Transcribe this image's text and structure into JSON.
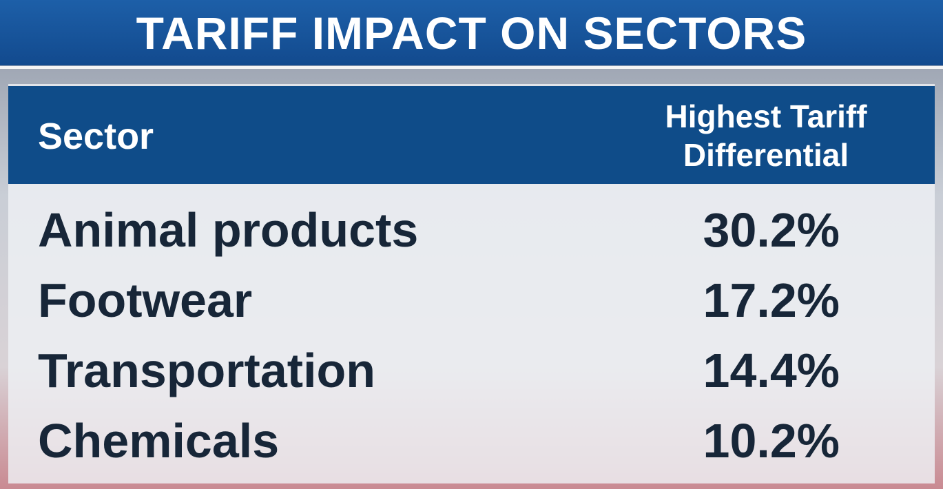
{
  "header": {
    "title": "TARIFF IMPACT ON SECTORS"
  },
  "table": {
    "columns": [
      "Sector",
      "Highest Tariff Differential"
    ],
    "rows": [
      [
        "Animal products",
        "30.2%"
      ],
      [
        "Footwear",
        "17.2%"
      ],
      [
        "Transportation",
        "14.4%"
      ],
      [
        "Chemicals",
        "10.2%"
      ]
    ]
  }
}
